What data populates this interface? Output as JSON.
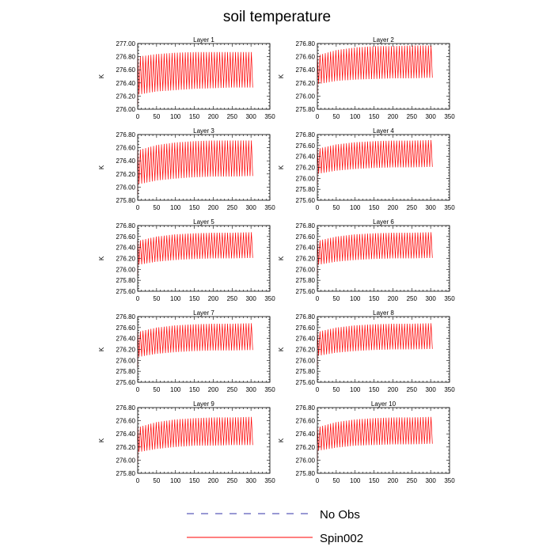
{
  "title": "soil temperature",
  "legend": [
    {
      "name": "No Obs",
      "color": "#3333aa",
      "dash": "dashed"
    },
    {
      "name": "Spin002",
      "color": "#ff0000",
      "dash": "solid"
    }
  ],
  "colors": {
    "series": "#ff0000",
    "axes": "#000000",
    "background": "#ffffff"
  },
  "chart_data": [
    {
      "type": "line",
      "title": "Layer 1",
      "ylabel": "K",
      "xlim": [
        0,
        350
      ],
      "ylim": [
        276.0,
        277.0
      ],
      "xticks": [
        0,
        50,
        100,
        150,
        200,
        250,
        300,
        350
      ],
      "yticks": [
        "276.00",
        "276.20",
        "276.40",
        "276.60",
        "276.80",
        "277.00"
      ],
      "grid": false,
      "series": [
        {
          "color": "#ff0000",
          "x_range": [
            0,
            307
          ],
          "period_days": 7,
          "envelope_days": [
            0,
            50,
            100,
            150,
            200,
            250,
            307
          ],
          "upper": [
            276.8,
            276.84,
            276.86,
            276.87,
            276.87,
            276.87,
            276.87
          ],
          "lower": [
            276.22,
            276.27,
            276.29,
            276.31,
            276.32,
            276.33,
            276.33
          ]
        }
      ]
    },
    {
      "type": "line",
      "title": "Layer 2",
      "ylabel": "K",
      "xlim": [
        0,
        350
      ],
      "ylim": [
        275.8,
        276.8
      ],
      "xticks": [
        0,
        50,
        100,
        150,
        200,
        250,
        300,
        350
      ],
      "yticks": [
        "275.80",
        "276.00",
        "276.20",
        "276.40",
        "276.60",
        "276.80"
      ],
      "grid": false,
      "series": [
        {
          "color": "#ff0000",
          "x_range": [
            0,
            307
          ],
          "period_days": 7,
          "envelope_days": [
            0,
            50,
            100,
            150,
            200,
            250,
            307
          ],
          "upper": [
            276.62,
            276.7,
            276.74,
            276.76,
            276.76,
            276.77,
            276.77
          ],
          "lower": [
            276.18,
            276.23,
            276.25,
            276.26,
            276.27,
            276.27,
            276.28
          ]
        }
      ]
    },
    {
      "type": "line",
      "title": "Layer 3",
      "ylabel": "K",
      "xlim": [
        0,
        350
      ],
      "ylim": [
        275.8,
        276.8
      ],
      "xticks": [
        0,
        50,
        100,
        150,
        200,
        250,
        300,
        350
      ],
      "yticks": [
        "275.80",
        "276.00",
        "276.20",
        "276.40",
        "276.60",
        "276.80"
      ],
      "grid": false,
      "series": [
        {
          "color": "#ff0000",
          "x_range": [
            0,
            307
          ],
          "period_days": 7,
          "envelope_days": [
            0,
            50,
            100,
            150,
            200,
            250,
            307
          ],
          "upper": [
            276.56,
            276.64,
            276.68,
            276.7,
            276.71,
            276.71,
            276.71
          ],
          "lower": [
            276.04,
            276.1,
            276.13,
            276.15,
            276.16,
            276.16,
            276.17
          ]
        }
      ]
    },
    {
      "type": "line",
      "title": "Layer 4",
      "ylabel": "K",
      "xlim": [
        0,
        350
      ],
      "ylim": [
        275.6,
        276.8
      ],
      "xticks": [
        0,
        50,
        100,
        150,
        200,
        250,
        300,
        350
      ],
      "yticks": [
        "275.60",
        "275.80",
        "276.00",
        "276.20",
        "276.40",
        "276.60",
        "276.80"
      ],
      "grid": false,
      "series": [
        {
          "color": "#ff0000",
          "x_range": [
            0,
            307
          ],
          "period_days": 7,
          "envelope_days": [
            0,
            50,
            100,
            150,
            200,
            250,
            307
          ],
          "upper": [
            276.54,
            276.62,
            276.66,
            276.68,
            276.69,
            276.69,
            276.7
          ],
          "lower": [
            276.08,
            276.14,
            276.17,
            276.19,
            276.2,
            276.2,
            276.21
          ]
        }
      ]
    },
    {
      "type": "line",
      "title": "Layer 5",
      "ylabel": "K",
      "xlim": [
        0,
        350
      ],
      "ylim": [
        275.6,
        276.8
      ],
      "xticks": [
        0,
        50,
        100,
        150,
        200,
        250,
        300,
        350
      ],
      "yticks": [
        "275.60",
        "275.80",
        "276.00",
        "276.20",
        "276.40",
        "276.60",
        "276.80"
      ],
      "grid": false,
      "series": [
        {
          "color": "#ff0000",
          "x_range": [
            0,
            307
          ],
          "period_days": 7,
          "envelope_days": [
            0,
            50,
            100,
            150,
            200,
            250,
            307
          ],
          "upper": [
            276.52,
            276.6,
            276.64,
            276.66,
            276.67,
            276.67,
            276.68
          ],
          "lower": [
            276.08,
            276.14,
            276.17,
            276.19,
            276.2,
            276.2,
            276.21
          ]
        }
      ]
    },
    {
      "type": "line",
      "title": "Layer 6",
      "ylabel": "K",
      "xlim": [
        0,
        350
      ],
      "ylim": [
        275.6,
        276.8
      ],
      "xticks": [
        0,
        50,
        100,
        150,
        200,
        250,
        300,
        350
      ],
      "yticks": [
        "275.60",
        "275.80",
        "276.00",
        "276.20",
        "276.40",
        "276.60",
        "276.80"
      ],
      "grid": false,
      "series": [
        {
          "color": "#ff0000",
          "x_range": [
            0,
            307
          ],
          "period_days": 7,
          "envelope_days": [
            0,
            50,
            100,
            150,
            200,
            250,
            307
          ],
          "upper": [
            276.52,
            276.6,
            276.64,
            276.66,
            276.67,
            276.67,
            276.68
          ],
          "lower": [
            276.08,
            276.14,
            276.17,
            276.19,
            276.2,
            276.2,
            276.21
          ]
        }
      ]
    },
    {
      "type": "line",
      "title": "Layer 7",
      "ylabel": "K",
      "xlim": [
        0,
        350
      ],
      "ylim": [
        275.6,
        276.8
      ],
      "xticks": [
        0,
        50,
        100,
        150,
        200,
        250,
        300,
        350
      ],
      "yticks": [
        "275.60",
        "275.80",
        "276.00",
        "276.20",
        "276.40",
        "276.60",
        "276.80"
      ],
      "grid": false,
      "series": [
        {
          "color": "#ff0000",
          "x_range": [
            0,
            307
          ],
          "period_days": 7,
          "envelope_days": [
            0,
            50,
            100,
            150,
            200,
            250,
            307
          ],
          "upper": [
            276.52,
            276.6,
            276.64,
            276.66,
            276.67,
            276.67,
            276.68
          ],
          "lower": [
            276.06,
            276.12,
            276.15,
            276.17,
            276.18,
            276.18,
            276.19
          ]
        }
      ]
    },
    {
      "type": "line",
      "title": "Layer 8",
      "ylabel": "K",
      "xlim": [
        0,
        350
      ],
      "ylim": [
        275.6,
        276.8
      ],
      "xticks": [
        0,
        50,
        100,
        150,
        200,
        250,
        300,
        350
      ],
      "yticks": [
        "275.60",
        "275.80",
        "276.00",
        "276.20",
        "276.40",
        "276.60",
        "276.80"
      ],
      "grid": false,
      "series": [
        {
          "color": "#ff0000",
          "x_range": [
            0,
            307
          ],
          "period_days": 7,
          "envelope_days": [
            0,
            50,
            100,
            150,
            200,
            250,
            307
          ],
          "upper": [
            276.52,
            276.6,
            276.64,
            276.66,
            276.67,
            276.67,
            276.68
          ],
          "lower": [
            276.08,
            276.14,
            276.17,
            276.19,
            276.2,
            276.2,
            276.21
          ]
        }
      ]
    },
    {
      "type": "line",
      "title": "Layer 9",
      "ylabel": "K",
      "xlim": [
        0,
        350
      ],
      "ylim": [
        275.8,
        276.8
      ],
      "xticks": [
        0,
        50,
        100,
        150,
        200,
        250,
        300,
        350
      ],
      "yticks": [
        "275.80",
        "276.00",
        "276.20",
        "276.40",
        "276.60",
        "276.80"
      ],
      "grid": false,
      "series": [
        {
          "color": "#ff0000",
          "x_range": [
            0,
            307
          ],
          "period_days": 7,
          "envelope_days": [
            0,
            50,
            100,
            150,
            200,
            250,
            307
          ],
          "upper": [
            276.5,
            276.58,
            276.62,
            276.64,
            276.65,
            276.65,
            276.66
          ],
          "lower": [
            276.12,
            276.17,
            276.2,
            276.22,
            276.22,
            276.23,
            276.23
          ]
        }
      ]
    },
    {
      "type": "line",
      "title": "Layer 10",
      "ylabel": "K",
      "xlim": [
        0,
        350
      ],
      "ylim": [
        275.8,
        276.8
      ],
      "xticks": [
        0,
        50,
        100,
        150,
        200,
        250,
        300,
        350
      ],
      "yticks": [
        "275.80",
        "276.00",
        "276.20",
        "276.40",
        "276.60",
        "276.80"
      ],
      "grid": false,
      "series": [
        {
          "color": "#ff0000",
          "x_range": [
            0,
            307
          ],
          "period_days": 7,
          "envelope_days": [
            0,
            50,
            100,
            150,
            200,
            250,
            307
          ],
          "upper": [
            276.5,
            276.58,
            276.62,
            276.64,
            276.65,
            276.65,
            276.66
          ],
          "lower": [
            276.14,
            276.19,
            276.22,
            276.23,
            276.24,
            276.24,
            276.25
          ]
        }
      ]
    }
  ]
}
